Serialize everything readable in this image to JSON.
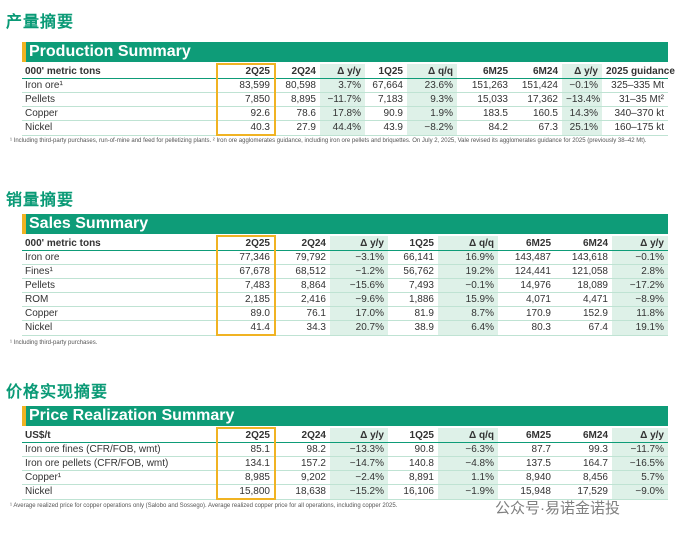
{
  "sections": [
    {
      "heading": "产量摘要",
      "title": "Production Summary",
      "header": [
        "000' metric tons",
        "2Q25",
        "2Q24",
        "Δ y/y",
        "1Q25",
        "Δ q/q",
        "6M25",
        "6M24",
        "Δ y/y",
        "2025 guidance"
      ],
      "rows": [
        [
          "Iron ore¹",
          "83,599",
          "80,598",
          "3.7%",
          "67,664",
          "23.6%",
          "151,263",
          "151,424",
          "−0.1%",
          "325–335 Mt"
        ],
        [
          "Pellets",
          "7,850",
          "8,895",
          "−11.7%",
          "7,183",
          "9.3%",
          "15,033",
          "17,362",
          "−13.4%",
          "31–35 Mt²"
        ],
        [
          "Copper",
          "92.6",
          "78.6",
          "17.8%",
          "90.9",
          "1.9%",
          "183.5",
          "160.5",
          "14.3%",
          "340–370 kt"
        ],
        [
          "Nickel",
          "40.3",
          "27.9",
          "44.4%",
          "43.9",
          "−8.2%",
          "84.2",
          "67.3",
          "25.1%",
          "160–175 kt"
        ]
      ],
      "footnote": "¹ Including third-party purchases, run-of-mine and feed for pelletizing plants. ² Iron ore agglomerates guidance, including iron ore pellets and briquettes. On July 2, 2025, Vale revised its agglomerates guidance for 2025 (previously 38–42 Mt)."
    },
    {
      "heading": "销量摘要",
      "title": "Sales Summary",
      "header": [
        "000' metric tons",
        "2Q25",
        "2Q24",
        "Δ y/y",
        "1Q25",
        "Δ q/q",
        "6M25",
        "6M24",
        "Δ y/y"
      ],
      "rows": [
        [
          "Iron ore",
          "77,346",
          "79,792",
          "−3.1%",
          "66,141",
          "16.9%",
          "143,487",
          "143,618",
          "−0.1%"
        ],
        [
          "Fines¹",
          "67,678",
          "68,512",
          "−1.2%",
          "56,762",
          "19.2%",
          "124,441",
          "121,058",
          "2.8%"
        ],
        [
          "Pellets",
          "7,483",
          "8,864",
          "−15.6%",
          "7,493",
          "−0.1%",
          "14,976",
          "18,089",
          "−17.2%"
        ],
        [
          "ROM",
          "2,185",
          "2,416",
          "−9.6%",
          "1,886",
          "15.9%",
          "4,071",
          "4,471",
          "−8.9%"
        ],
        [
          "Copper",
          "89.0",
          "76.1",
          "17.0%",
          "81.9",
          "8.7%",
          "170.9",
          "152.9",
          "11.8%"
        ],
        [
          "Nickel",
          "41.4",
          "34.3",
          "20.7%",
          "38.9",
          "6.4%",
          "80.3",
          "67.4",
          "19.1%"
        ]
      ],
      "footnote": "¹ Including third-party purchases."
    },
    {
      "heading": "价格实现摘要",
      "title": "Price Realization Summary",
      "header": [
        "US$/t",
        "2Q25",
        "2Q24",
        "Δ y/y",
        "1Q25",
        "Δ q/q",
        "6M25",
        "6M24",
        "Δ y/y"
      ],
      "rows": [
        [
          "Iron ore fines (CFR/FOB, wmt)",
          "85.1",
          "98.2",
          "−13.3%",
          "90.8",
          "−6.3%",
          "87.7",
          "99.3",
          "−11.7%"
        ],
        [
          "Iron ore pellets (CFR/FOB, wmt)",
          "134.1",
          "157.2",
          "−14.7%",
          "140.8",
          "−4.8%",
          "137.5",
          "164.7",
          "−16.5%"
        ],
        [
          "Copper¹",
          "8,985",
          "9,202",
          "−2.4%",
          "8,891",
          "1.1%",
          "8,940",
          "8,456",
          "5.7%"
        ],
        [
          "Nickel",
          "15,800",
          "18,638",
          "−15.2%",
          "16,106",
          "−1.9%",
          "15,948",
          "17,529",
          "−9.0%"
        ]
      ],
      "footnote": "¹ Average realized price for copper operations only (Salobo and Sossego). Average realized copper price for all operations, including copper 2025."
    }
  ],
  "watermark": "公众号·易诺金诺投"
}
